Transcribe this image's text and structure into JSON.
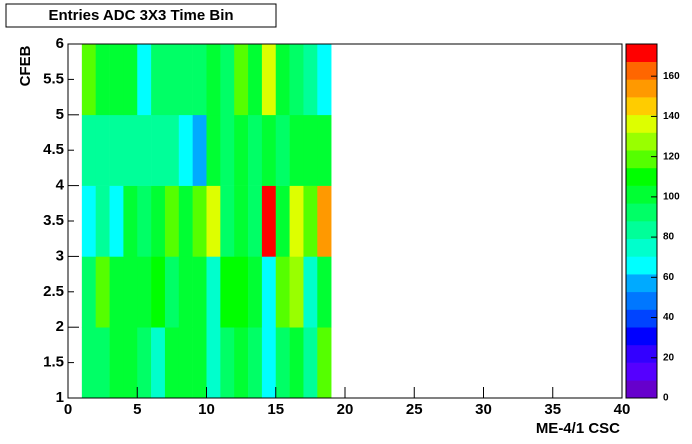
{
  "chart_data": {
    "type": "heatmap",
    "title": "Entries ADC 3X3 Time Bin",
    "xlabel": "ME-4/1 CSC",
    "ylabel": "CFEB",
    "x": [
      1.5,
      2.5,
      3.5,
      4.5,
      5.5,
      6.5,
      7.5,
      8.5,
      9.5,
      10.5,
      11.5,
      12.5,
      13.5,
      14.5,
      15.5,
      16.5,
      17.5,
      18.5
    ],
    "y": [
      1.5,
      2.5,
      3.5,
      4.5,
      5.5
    ],
    "values": [
      [
        95,
        90,
        100,
        100,
        95,
        75,
        100,
        100,
        105,
        75,
        95,
        100,
        95,
        65,
        95,
        100,
        80,
        115
      ],
      [
        95,
        115,
        105,
        100,
        105,
        112,
        90,
        100,
        100,
        75,
        110,
        110,
        105,
        65,
        115,
        125,
        75,
        100
      ],
      [
        65,
        85,
        65,
        100,
        95,
        100,
        115,
        100,
        120,
        135,
        95,
        100,
        95,
        175,
        100,
        138,
        120,
        150
      ],
      [
        80,
        80,
        80,
        80,
        80,
        80,
        85,
        65,
        55,
        100,
        95,
        100,
        92,
        100,
        92,
        100,
        100,
        100
      ],
      [
        120,
        100,
        100,
        105,
        70,
        95,
        90,
        90,
        90,
        100,
        95,
        115,
        100,
        140,
        100,
        95,
        85,
        70
      ]
    ],
    "xlim": [
      0,
      40
    ],
    "xticks": [
      0,
      5,
      10,
      15,
      20,
      25,
      30,
      35,
      40
    ],
    "ylim": [
      1,
      6
    ],
    "yticks": [
      1,
      1.5,
      2,
      2.5,
      3,
      3.5,
      4,
      4.5,
      5,
      5.5,
      6
    ],
    "zlim": [
      0,
      176
    ],
    "zticks": [
      0,
      20,
      40,
      60,
      80,
      100,
      120,
      140,
      160
    ],
    "colorscale": [
      "#6600cc",
      "#5500ff",
      "#3300ff",
      "#0000ff",
      "#0044ff",
      "#0077ff",
      "#00aaff",
      "#00ffff",
      "#00ffcc",
      "#00ff99",
      "#00ff66",
      "#00ff33",
      "#00ff00",
      "#55ff00",
      "#99ff00",
      "#ddff00",
      "#ffcc00",
      "#ff9900",
      "#ff6600",
      "#ff0000"
    ]
  }
}
